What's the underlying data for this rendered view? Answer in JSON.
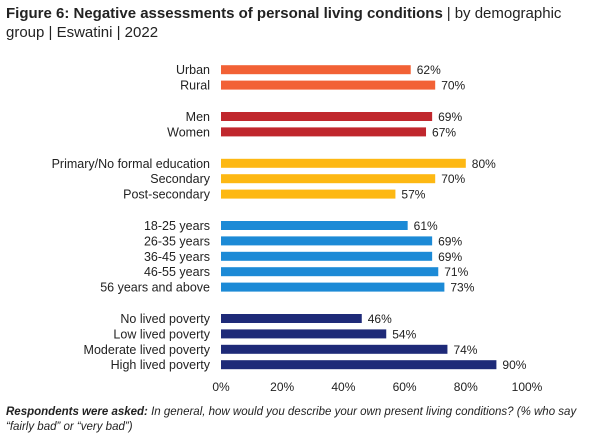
{
  "header": {
    "title_bold": "Figure 6: Negative assessments of personal living conditions",
    "title_rest": "by demographic group | Eswatini | 2022"
  },
  "footnote": {
    "lead": "Respondents were asked:",
    "question": "In general, how would you describe your own present living conditions? (% who say “fairly bad” or “very bad”)"
  },
  "chart_data": {
    "type": "bar",
    "orientation": "horizontal",
    "title": "Figure 6: Negative assessments of personal living conditions | by demographic group | Eswatini | 2022",
    "xlim": [
      0,
      100
    ],
    "x_ticks": [
      "0%",
      "20%",
      "40%",
      "60%",
      "80%",
      "100%"
    ],
    "grid": false,
    "groups": [
      {
        "color": "#F26135",
        "bars": [
          {
            "label": "Urban",
            "value": 62
          },
          {
            "label": "Rural",
            "value": 70
          }
        ]
      },
      {
        "color": "#C0272D",
        "bars": [
          {
            "label": "Men",
            "value": 69
          },
          {
            "label": "Women",
            "value": 67
          }
        ]
      },
      {
        "color": "#FDB813",
        "bars": [
          {
            "label": "Primary/No formal education",
            "value": 80
          },
          {
            "label": "Secondary",
            "value": 70
          },
          {
            "label": "Post-secondary",
            "value": 57
          }
        ]
      },
      {
        "color": "#1C8AD6",
        "bars": [
          {
            "label": "18-25 years",
            "value": 61
          },
          {
            "label": "26-35 years",
            "value": 69
          },
          {
            "label": "36-45 years",
            "value": 69
          },
          {
            "label": "46-55 years",
            "value": 71
          },
          {
            "label": "56 years and above",
            "value": 73
          }
        ]
      },
      {
        "color": "#1E2A78",
        "bars": [
          {
            "label": "No lived poverty",
            "value": 46
          },
          {
            "label": "Low lived poverty",
            "value": 54
          },
          {
            "label": "Moderate lived poverty",
            "value": 74
          },
          {
            "label": "High lived poverty",
            "value": 90
          }
        ]
      }
    ]
  }
}
